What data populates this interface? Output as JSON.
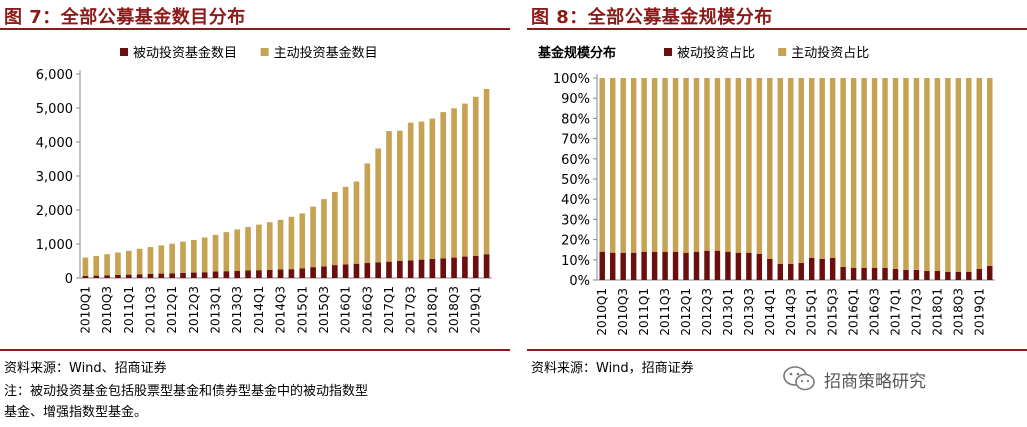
{
  "colors": {
    "passive": "#6b0e0e",
    "active": "#c6a253",
    "accent": "#8b1a1a",
    "axis": "#888888"
  },
  "left": {
    "title": "图 7：全部公募基金数目分布",
    "source": "资料来源：Wind、招商证券",
    "note_line1": "注：被动投资基金包括股票型基金和债券型基金中的被动指数型",
    "note_line2": "基金、增强指数型基金。"
  },
  "right": {
    "title": "图 8：全部公募基金规模分布",
    "source": "资料来源：Wind，招商证券",
    "watermark": "招商策略研究",
    "watermark_icon": "wechat-icon"
  },
  "chart_data": [
    {
      "type": "bar",
      "stacked": true,
      "x": [
        "2010Q1",
        "2010Q2",
        "2010Q3",
        "2010Q4",
        "2011Q1",
        "2011Q2",
        "2011Q3",
        "2011Q4",
        "2012Q1",
        "2012Q2",
        "2012Q3",
        "2012Q4",
        "2013Q1",
        "2013Q2",
        "2013Q3",
        "2013Q4",
        "2014Q1",
        "2014Q2",
        "2014Q3",
        "2014Q4",
        "2015Q1",
        "2015Q2",
        "2015Q3",
        "2015Q4",
        "2016Q1",
        "2016Q2",
        "2016Q3",
        "2016Q4",
        "2017Q1",
        "2017Q2",
        "2017Q3",
        "2017Q4",
        "2018Q1",
        "2018Q2",
        "2018Q3",
        "2018Q4",
        "2019Q1",
        "2019Q2"
      ],
      "tick_labels": [
        "2010Q1",
        "2010Q3",
        "2011Q1",
        "2011Q3",
        "2012Q1",
        "2012Q3",
        "2013Q1",
        "2013Q3",
        "2014Q1",
        "2014Q3",
        "2015Q1",
        "2015Q3",
        "2016Q1",
        "2016Q3",
        "2017Q1",
        "2017Q3",
        "2018Q1",
        "2018Q3",
        "2019Q1"
      ],
      "series": [
        {
          "name": "被动投资基金数目",
          "values": [
            60,
            70,
            80,
            90,
            100,
            110,
            120,
            130,
            140,
            150,
            160,
            170,
            190,
            200,
            210,
            220,
            230,
            240,
            250,
            260,
            280,
            320,
            340,
            380,
            400,
            420,
            440,
            460,
            480,
            500,
            520,
            540,
            560,
            580,
            600,
            630,
            650,
            700
          ]
        },
        {
          "name": "主动投资基金数目",
          "values": [
            540,
            580,
            620,
            660,
            700,
            750,
            790,
            830,
            870,
            920,
            960,
            1020,
            1080,
            1150,
            1220,
            1280,
            1340,
            1400,
            1460,
            1540,
            1620,
            1780,
            1980,
            2150,
            2280,
            2420,
            2930,
            3350,
            3840,
            3830,
            4050,
            4060,
            4130,
            4300,
            4390,
            4500,
            4680,
            4860
          ]
        }
      ],
      "ylim": [
        0,
        6000
      ],
      "yticks": [
        "0",
        "1,000",
        "2,000",
        "3,000",
        "4,000",
        "5,000",
        "6,000"
      ],
      "legend_position": "top",
      "grid": false
    },
    {
      "type": "bar",
      "stacked": true,
      "title": "基金规模分布",
      "x": [
        "2010Q1",
        "2010Q2",
        "2010Q3",
        "2010Q4",
        "2011Q1",
        "2011Q2",
        "2011Q3",
        "2011Q4",
        "2012Q1",
        "2012Q2",
        "2012Q3",
        "2012Q4",
        "2013Q1",
        "2013Q2",
        "2013Q3",
        "2013Q4",
        "2014Q1",
        "2014Q2",
        "2014Q3",
        "2014Q4",
        "2015Q1",
        "2015Q2",
        "2015Q3",
        "2015Q4",
        "2016Q1",
        "2016Q2",
        "2016Q3",
        "2016Q4",
        "2017Q1",
        "2017Q2",
        "2017Q3",
        "2017Q4",
        "2018Q1",
        "2018Q2",
        "2018Q3",
        "2018Q4",
        "2019Q1",
        "2019Q2"
      ],
      "tick_labels": [
        "2010Q1",
        "2010Q3",
        "2011Q1",
        "2011Q3",
        "2012Q1",
        "2012Q3",
        "2013Q1",
        "2013Q3",
        "2014Q1",
        "2014Q3",
        "2015Q1",
        "2015Q3",
        "2016Q1",
        "2016Q3",
        "2017Q1",
        "2017Q3",
        "2018Q1",
        "2018Q3",
        "2019Q1"
      ],
      "series": [
        {
          "name": "被动投资占比",
          "values": [
            14,
            13.5,
            13.5,
            13.5,
            14,
            14,
            14,
            14,
            13.5,
            14,
            14.5,
            14.5,
            14,
            13.5,
            13.5,
            13,
            10.5,
            8,
            8,
            8.5,
            11,
            10.5,
            11,
            6.5,
            6,
            6,
            6,
            6,
            5.5,
            5,
            5,
            4.5,
            4.5,
            4,
            4,
            4,
            5.5,
            7
          ]
        },
        {
          "name": "主动投资占比",
          "values": [
            86,
            86.5,
            86.5,
            86.5,
            86,
            86,
            86,
            86,
            86.5,
            86,
            85.5,
            85.5,
            86,
            86.5,
            86.5,
            87,
            89.5,
            92,
            92,
            91.5,
            89,
            89.5,
            89,
            93.5,
            94,
            94,
            94,
            94,
            94.5,
            95,
            95,
            95.5,
            95.5,
            96,
            96,
            96,
            94.5,
            93
          ]
        }
      ],
      "ylim": [
        0,
        100
      ],
      "yticks": [
        "0%",
        "10%",
        "20%",
        "30%",
        "40%",
        "50%",
        "60%",
        "70%",
        "80%",
        "90%",
        "100%"
      ],
      "legend_position": "top",
      "grid": false
    }
  ]
}
